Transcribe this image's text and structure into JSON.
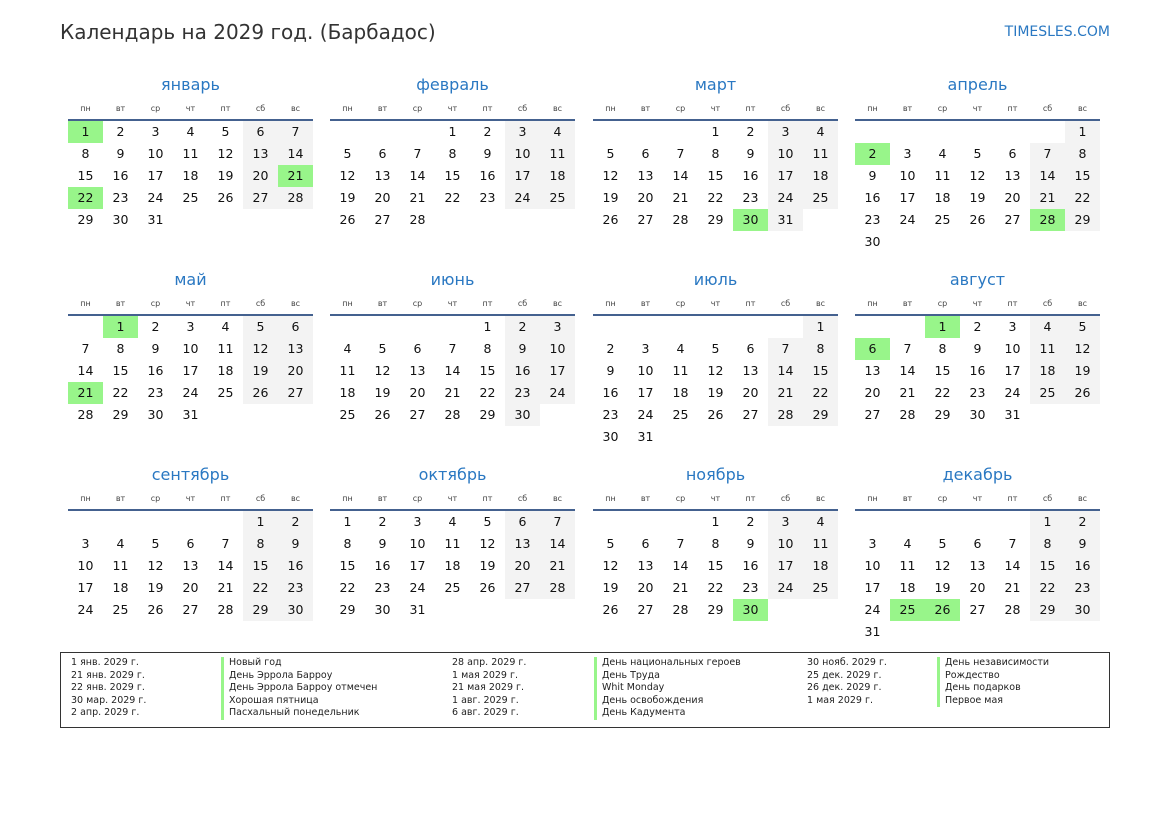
{
  "header": {
    "title": "Календарь на 2029 год. (Барбадос)",
    "brand": "TIMESLES.COM"
  },
  "year": 2029,
  "colors": {
    "accent": "#2a78c2",
    "holiday": "#98f58a",
    "weekend": "#f3f3f3",
    "rule": "#44618f"
  },
  "weekdays": [
    "пн",
    "вт",
    "ср",
    "чт",
    "пт",
    "сб",
    "вс"
  ],
  "months": [
    {
      "name": "январь",
      "holidays": [
        1,
        21,
        22
      ]
    },
    {
      "name": "февраль",
      "holidays": []
    },
    {
      "name": "март",
      "holidays": [
        30
      ]
    },
    {
      "name": "апрель",
      "holidays": [
        2,
        28
      ]
    },
    {
      "name": "май",
      "holidays": [
        1,
        21
      ]
    },
    {
      "name": "июнь",
      "holidays": []
    },
    {
      "name": "июль",
      "holidays": []
    },
    {
      "name": "август",
      "holidays": [
        1,
        6
      ]
    },
    {
      "name": "сентябрь",
      "holidays": []
    },
    {
      "name": "октябрь",
      "holidays": []
    },
    {
      "name": "ноябрь",
      "holidays": [
        30
      ]
    },
    {
      "name": "декабрь",
      "holidays": [
        25,
        26
      ]
    }
  ],
  "legend": [
    {
      "date": "1 янв. 2029 г.",
      "name": "Новый год"
    },
    {
      "date": "21 янв. 2029 г.",
      "name": "День Эррола Барроу"
    },
    {
      "date": "22 янв. 2029 г.",
      "name": "День Эррола Барроу отмечен"
    },
    {
      "date": "30 мар. 2029 г.",
      "name": "Хорошая пятница"
    },
    {
      "date": "2 апр. 2029 г.",
      "name": "Пасхальный понедельник"
    },
    {
      "date": "28 апр. 2029 г.",
      "name": "День национальных героев"
    },
    {
      "date": "1 мая 2029 г.",
      "name": "День Труда"
    },
    {
      "date": "21 мая 2029 г.",
      "name": "Whit Monday"
    },
    {
      "date": "1 авг. 2029 г.",
      "name": "День освобождения"
    },
    {
      "date": "6 авг. 2029 г.",
      "name": "День Кадумента"
    },
    {
      "date": "30 нояб. 2029 г.",
      "name": "День независимости"
    },
    {
      "date": "25 дек. 2029 г.",
      "name": "Рождество"
    },
    {
      "date": "26 дек. 2029 г.",
      "name": "День подарков"
    },
    {
      "date": "1 мая 2029 г.",
      "name": "Первое мая"
    }
  ]
}
